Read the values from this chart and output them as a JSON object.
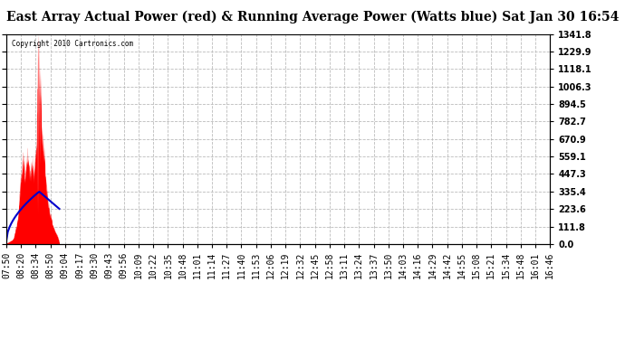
{
  "title": "East Array Actual Power (red) & Running Average Power (Watts blue) Sat Jan 30 16:54",
  "copyright": "Copyright 2010 Cartronics.com",
  "ymin": 0.0,
  "ymax": 1341.8,
  "yticks": [
    0.0,
    111.8,
    223.6,
    335.4,
    447.3,
    559.1,
    670.9,
    782.7,
    894.5,
    1006.3,
    1118.1,
    1229.9,
    1341.8
  ],
  "ytick_labels": [
    "0.0",
    "111.8",
    "223.6",
    "335.4",
    "447.3",
    "559.1",
    "670.9",
    "782.7",
    "894.5",
    "1006.3",
    "1118.1",
    "1229.9",
    "1341.8"
  ],
  "background_color": "#ffffff",
  "grid_color": "#bbbbbb",
  "actual_color": "#ff0000",
  "avg_color": "#0000cc",
  "title_fontsize": 10,
  "tick_fontsize": 7,
  "x_labels": [
    "07:50",
    "08:20",
    "08:34",
    "08:50",
    "09:04",
    "09:17",
    "09:30",
    "09:43",
    "09:56",
    "10:09",
    "10:22",
    "10:35",
    "10:48",
    "11:01",
    "11:14",
    "11:27",
    "11:40",
    "11:53",
    "12:06",
    "12:19",
    "12:32",
    "12:45",
    "12:58",
    "13:11",
    "13:24",
    "13:37",
    "13:50",
    "14:03",
    "14:16",
    "14:29",
    "14:42",
    "14:55",
    "15:08",
    "15:21",
    "15:34",
    "15:48",
    "16:01",
    "16:46"
  ]
}
